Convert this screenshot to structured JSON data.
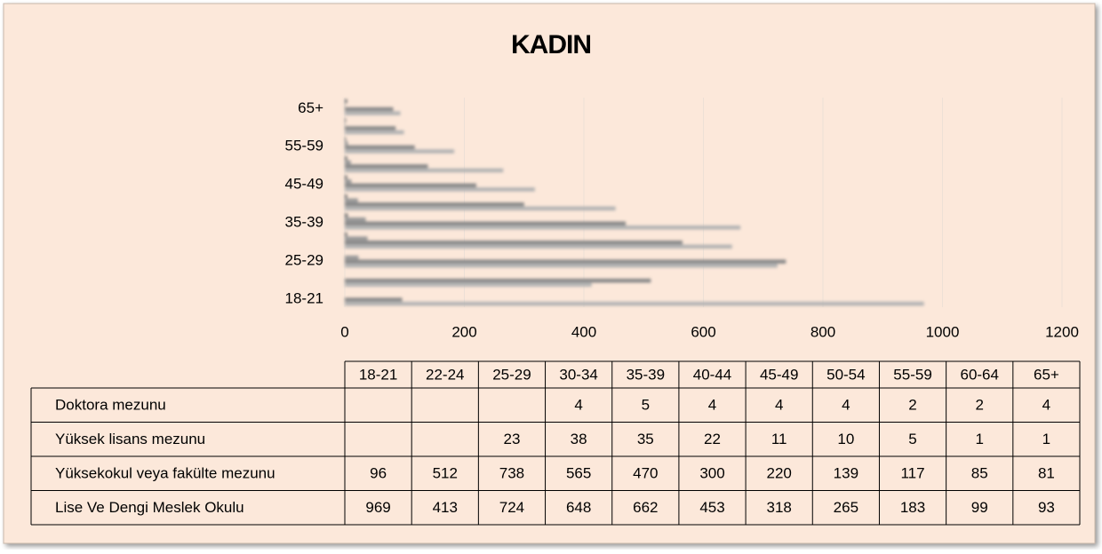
{
  "chart_data": {
    "type": "bar",
    "orientation": "horizontal",
    "title": "KADIN",
    "categories": [
      "18-21",
      "22-24",
      "25-29",
      "30-34",
      "35-39",
      "40-44",
      "45-49",
      "50-54",
      "55-59",
      "60-64",
      "65+"
    ],
    "series": [
      {
        "name": "Doktora mezunu",
        "color": "#7a7a7a",
        "values": [
          null,
          null,
          null,
          4,
          5,
          4,
          4,
          4,
          2,
          2,
          4
        ]
      },
      {
        "name": "Yüksek lisans mezunu",
        "color": "#9a9a9a",
        "values": [
          null,
          null,
          23,
          38,
          35,
          22,
          11,
          10,
          5,
          1,
          1
        ]
      },
      {
        "name": "Yüksekokul veya fakülte mezunu",
        "color": "#8a8a8a",
        "values": [
          96,
          512,
          738,
          565,
          470,
          300,
          220,
          139,
          117,
          85,
          81
        ]
      },
      {
        "name": "Lise Ve Dengi Meslek Okulu",
        "color": "#b4b4b4",
        "values": [
          969,
          413,
          724,
          648,
          662,
          453,
          318,
          265,
          183,
          99,
          93
        ]
      }
    ],
    "xlim": [
      0,
      1200
    ],
    "xticks": [
      0,
      200,
      400,
      600,
      800,
      1000,
      1200
    ],
    "grid": true
  }
}
